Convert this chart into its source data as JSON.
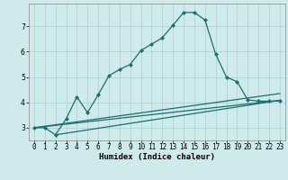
{
  "xlabel": "Humidex (Indice chaleur)",
  "ylabel": "",
  "bg_color": "#ceeaea",
  "grid_color": "#aed4d4",
  "line_color": "#1a6e6e",
  "xlim": [
    -0.5,
    23.5
  ],
  "ylim": [
    2.5,
    7.9
  ],
  "xticks": [
    0,
    1,
    2,
    3,
    4,
    5,
    6,
    7,
    8,
    9,
    10,
    11,
    12,
    13,
    14,
    15,
    16,
    17,
    18,
    19,
    20,
    21,
    22,
    23
  ],
  "xtick_labels": [
    "0",
    "1",
    "2",
    "3",
    "4",
    "5",
    "6",
    "7",
    "8",
    "9",
    "10",
    "11",
    "12",
    "13",
    "14",
    "15",
    "16",
    "17",
    "18",
    "19",
    "20",
    "21",
    "22",
    "23"
  ],
  "yticks": [
    3,
    4,
    5,
    6,
    7
  ],
  "line1_x": [
    0,
    1,
    2,
    3,
    4,
    5,
    6,
    7,
    8,
    9,
    10,
    11,
    12,
    13,
    14,
    15,
    16,
    17,
    18,
    19,
    20,
    21,
    22,
    23
  ],
  "line1_y": [
    3.0,
    3.0,
    2.72,
    3.35,
    4.22,
    3.6,
    4.3,
    5.05,
    5.3,
    5.5,
    6.05,
    6.3,
    6.55,
    7.05,
    7.55,
    7.55,
    7.25,
    5.9,
    5.0,
    4.82,
    4.1,
    4.05,
    4.05,
    4.05
  ],
  "line2_x": [
    0,
    23
  ],
  "line2_y": [
    3.0,
    4.08
  ],
  "line3_x": [
    0,
    23
  ],
  "line3_y": [
    3.0,
    4.35
  ],
  "line4_x": [
    2,
    23
  ],
  "line4_y": [
    2.72,
    4.08
  ],
  "marker": "D",
  "markersize": 2.2,
  "linewidth": 0.9,
  "title_fontsize": 7,
  "label_fontsize": 6.5,
  "tick_fontsize": 5.5
}
